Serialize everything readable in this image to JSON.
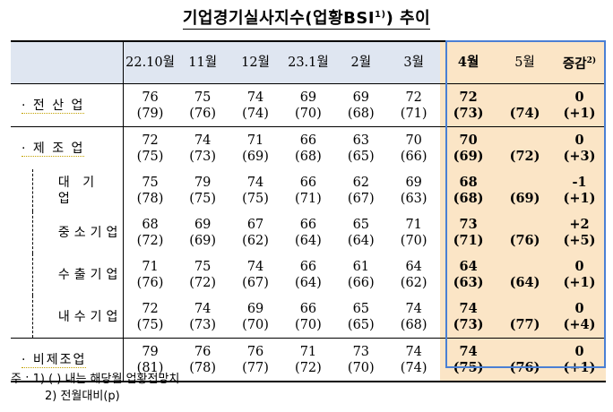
{
  "title": {
    "main": "기업경기실사지수(업황BSI",
    "sup": "1)",
    "tail": ") 추이"
  },
  "columns": [
    "22.10월",
    "11월",
    "12월",
    "23.1월",
    "2월",
    "3월",
    "4월",
    "5월",
    "증감"
  ],
  "columns_note": {
    "change_sup": "2)"
  },
  "rows": [
    {
      "label": "· 전 산 업",
      "v": [
        "76",
        "75",
        "74",
        "69",
        "69",
        "72"
      ],
      "p": [
        "(79)",
        "(76)",
        "(74)",
        "(70)",
        "(68)",
        "(71)"
      ],
      "apr": "72",
      "apr_p": "(73)",
      "may_p": "(74)",
      "chg": "0",
      "chg_p": "(+1)"
    },
    {
      "label": "· 제 조 업",
      "v": [
        "72",
        "74",
        "71",
        "66",
        "63",
        "70"
      ],
      "p": [
        "(75)",
        "(73)",
        "(69)",
        "(68)",
        "(65)",
        "(66)"
      ],
      "apr": "70",
      "apr_p": "(69)",
      "may_p": "(72)",
      "chg": "0",
      "chg_p": "(+3)"
    },
    {
      "label": "대 기 업",
      "v": [
        "75",
        "79",
        "74",
        "66",
        "62",
        "69"
      ],
      "p": [
        "(78)",
        "(75)",
        "(75)",
        "(71)",
        "(67)",
        "(63)"
      ],
      "apr": "68",
      "apr_p": "(68)",
      "may_p": "(69)",
      "chg": "-1",
      "chg_p": "(+1)"
    },
    {
      "label": "중소기업",
      "v": [
        "68",
        "69",
        "67",
        "66",
        "65",
        "71"
      ],
      "p": [
        "(72)",
        "(69)",
        "(62)",
        "(64)",
        "(64)",
        "(70)"
      ],
      "apr": "73",
      "apr_p": "(71)",
      "may_p": "(76)",
      "chg": "+2",
      "chg_p": "(+5)"
    },
    {
      "label": "수출기업",
      "v": [
        "71",
        "75",
        "74",
        "66",
        "61",
        "64"
      ],
      "p": [
        "(76)",
        "(72)",
        "(67)",
        "(64)",
        "(66)",
        "(62)"
      ],
      "apr": "64",
      "apr_p": "(63)",
      "may_p": "(64)",
      "chg": "0",
      "chg_p": "(+1)"
    },
    {
      "label": "내수기업",
      "v": [
        "72",
        "74",
        "69",
        "66",
        "65",
        "74"
      ],
      "p": [
        "(75)",
        "(73)",
        "(70)",
        "(70)",
        "(65)",
        "(68)"
      ],
      "apr": "74",
      "apr_p": "(73)",
      "may_p": "(77)",
      "chg": "0",
      "chg_p": "(+4)"
    },
    {
      "label": "· 비제조업",
      "v": [
        "79",
        "76",
        "76",
        "71",
        "73",
        "74"
      ],
      "p": [
        "(81)",
        "(78)",
        "(77)",
        "(72)",
        "(70)",
        "(74)"
      ],
      "apr": "74",
      "apr_p": "(75)",
      "may_p": "(76)",
      "chg": "0",
      "chg_p": "(+1)"
    }
  ],
  "notes": {
    "prefix": "주 :",
    "n1": "1) (   ) 내는 해당월 업황전망치",
    "n2": "2) 전월대비(p)"
  }
}
